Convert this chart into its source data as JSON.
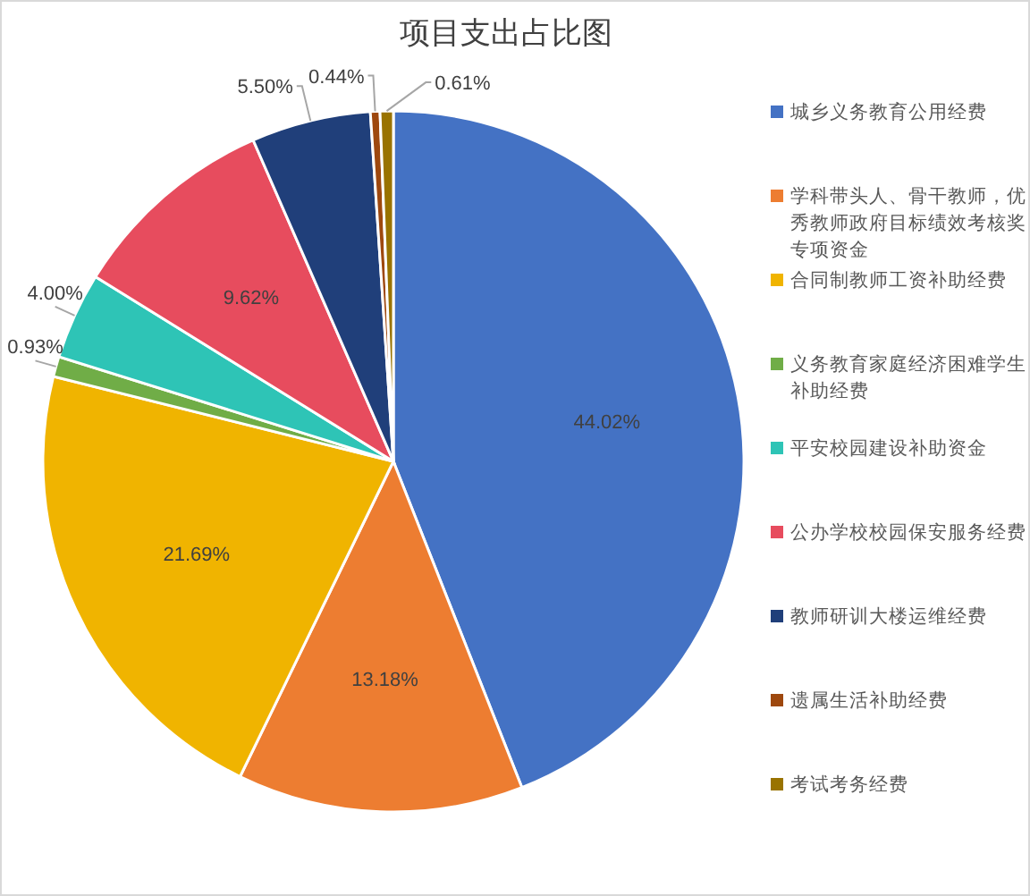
{
  "chart_data": {
    "type": "pie",
    "title": "项目支出占比图",
    "categories": [
      "城乡义务教育公用经费",
      "学科带头人、骨干教师，优秀教师政府目标绩效考核奖专项资金",
      "合同制教师工资补助经费",
      "义务教育家庭经济困难学生补助经费",
      "平安校园建设补助资金",
      "公办学校校园保安服务经费",
      "教师研训大楼运维经费",
      "遗属生活补助经费",
      "考试考务经费"
    ],
    "values": [
      44.02,
      13.18,
      21.69,
      0.93,
      4.0,
      9.62,
      5.5,
      0.44,
      0.61
    ],
    "value_labels": [
      "44.02%",
      "13.18%",
      "21.69%",
      "0.93%",
      "4.00%",
      "9.62%",
      "5.50%",
      "0.44%",
      "0.61%"
    ],
    "colors": [
      "#4472c4",
      "#ed7d31",
      "#f0b400",
      "#70ad47",
      "#2ec4b6",
      "#e74c5e",
      "#203f7a",
      "#9e480e",
      "#997300"
    ],
    "legend": "right"
  }
}
